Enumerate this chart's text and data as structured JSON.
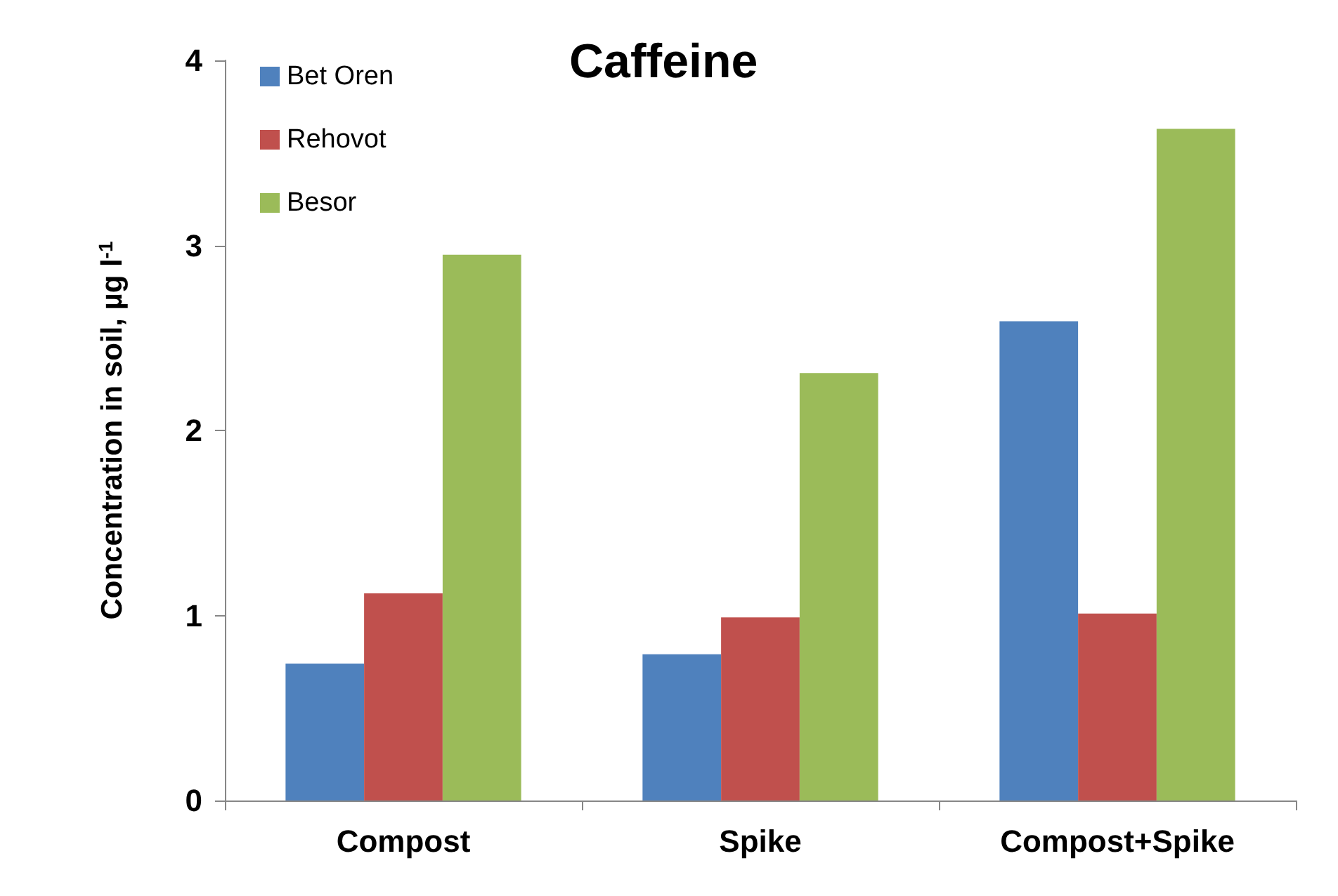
{
  "chart_data": {
    "type": "bar",
    "title": "Caffeine",
    "ylabel": "Concentration in soil, µg l$^{-1}$",
    "categories": [
      "Compost",
      "Spike",
      "Compost+Spike"
    ],
    "series": [
      {
        "name": "Bet Oren",
        "color": "#4f81bd",
        "values": [
          0.74,
          0.79,
          2.59
        ]
      },
      {
        "name": "Rehovot",
        "color": "#c0504d",
        "values": [
          1.12,
          0.99,
          1.01
        ]
      },
      {
        "name": "Besor",
        "color": "#9bbb59",
        "values": [
          2.95,
          2.31,
          3.63
        ]
      }
    ],
    "ylim": [
      0,
      4
    ],
    "yticks": [
      0,
      1,
      2,
      3,
      4
    ],
    "grid": false,
    "legend": "top left"
  }
}
